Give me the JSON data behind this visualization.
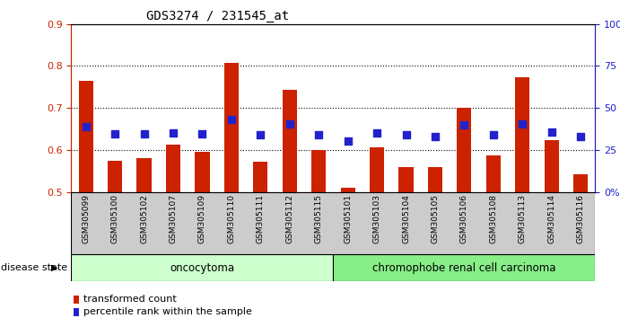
{
  "title": "GDS3274 / 231545_at",
  "samples": [
    "GSM305099",
    "GSM305100",
    "GSM305102",
    "GSM305107",
    "GSM305109",
    "GSM305110",
    "GSM305111",
    "GSM305112",
    "GSM305115",
    "GSM305101",
    "GSM305103",
    "GSM305104",
    "GSM305105",
    "GSM305106",
    "GSM305108",
    "GSM305113",
    "GSM305114",
    "GSM305116"
  ],
  "bar_values": [
    0.765,
    0.575,
    0.582,
    0.614,
    0.597,
    0.807,
    0.573,
    0.744,
    0.6,
    0.51,
    0.608,
    0.56,
    0.56,
    0.7,
    0.588,
    0.773,
    0.624,
    0.543
  ],
  "blue_values": [
    0.655,
    0.638,
    0.638,
    0.642,
    0.638,
    0.672,
    0.636,
    0.662,
    0.636,
    0.622,
    0.642,
    0.636,
    0.632,
    0.66,
    0.636,
    0.662,
    0.644,
    0.632
  ],
  "ylim_left": [
    0.5,
    0.9
  ],
  "ylim_right": [
    0,
    100
  ],
  "yticks_left": [
    0.5,
    0.6,
    0.7,
    0.8,
    0.9
  ],
  "yticks_right": [
    0,
    25,
    50,
    75,
    100
  ],
  "ytick_labels_right": [
    "0",
    "25",
    "50",
    "75",
    "100%"
  ],
  "ytick_labels_left": [
    "0.5",
    "0.6",
    "0.7",
    "0.8",
    "0.9"
  ],
  "bar_color": "#cc2200",
  "blue_color": "#2222cc",
  "group1_label": "oncocytoma",
  "group2_label": "chromophobe renal cell carcinoma",
  "group1_count": 9,
  "group2_count": 9,
  "disease_state_label": "disease state",
  "legend_bar_label": "transformed count",
  "legend_blue_label": "percentile rank within the sample",
  "group1_bg": "#ccffcc",
  "group2_bg": "#88ee88",
  "xlabel_bg": "#cccccc",
  "bar_width": 0.5
}
